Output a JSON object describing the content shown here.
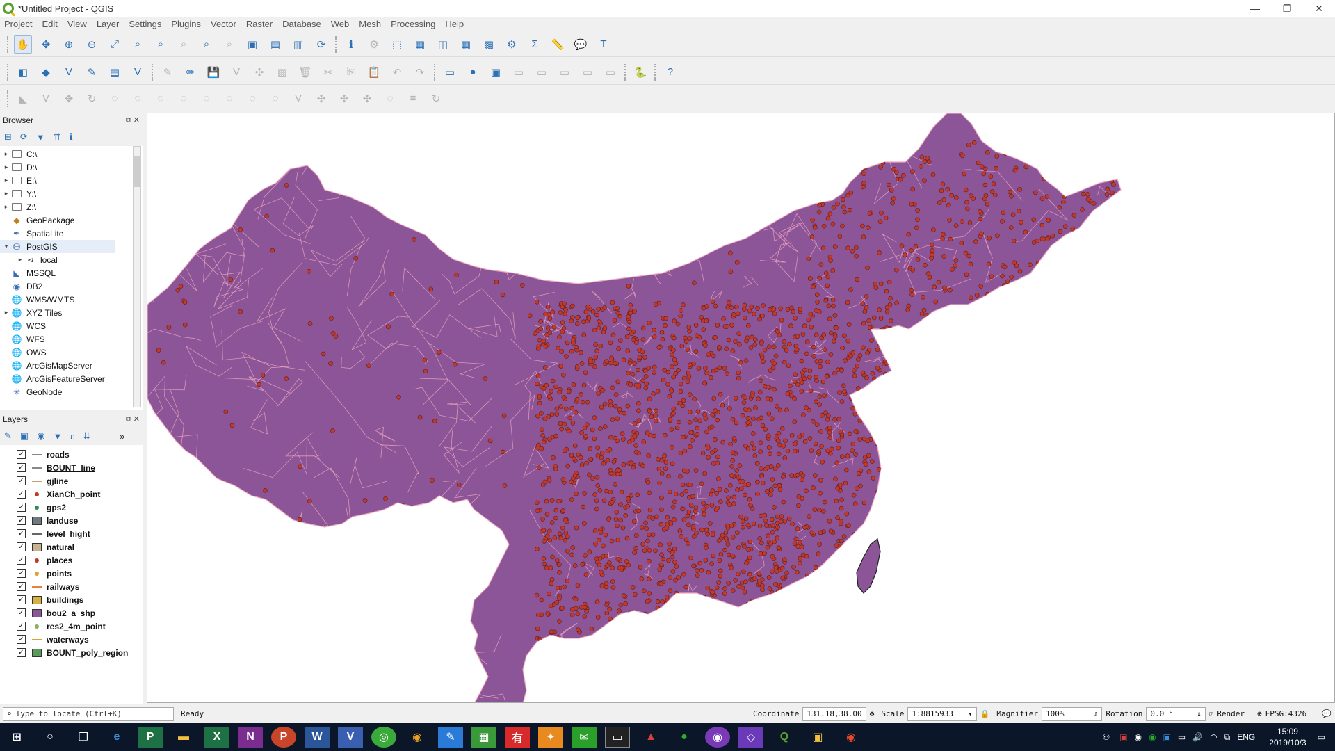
{
  "window": {
    "title": "*Untitled Project - QGIS"
  },
  "menu": [
    "Project",
    "Edit",
    "View",
    "Layer",
    "Settings",
    "Plugins",
    "Vector",
    "Raster",
    "Database",
    "Web",
    "Mesh",
    "Processing",
    "Help"
  ],
  "browser": {
    "title": "Browser",
    "items": [
      {
        "label": "C:\\",
        "icon": "folder-icon",
        "twisty": "▸"
      },
      {
        "label": "D:\\",
        "icon": "folder-icon",
        "twisty": "▸"
      },
      {
        "label": "E:\\",
        "icon": "folder-icon",
        "twisty": "▸"
      },
      {
        "label": "Y:\\",
        "icon": "folder-icon",
        "twisty": "▸"
      },
      {
        "label": "Z:\\",
        "icon": "folder-icon",
        "twisty": "▸"
      },
      {
        "label": "GeoPackage",
        "icon": "geopackage-icon",
        "twisty": ""
      },
      {
        "label": "SpatiaLite",
        "icon": "spatialite-icon",
        "twisty": ""
      },
      {
        "label": "PostGIS",
        "icon": "postgis-icon",
        "twisty": "▾"
      },
      {
        "label": "local",
        "icon": "connection-icon",
        "twisty": "▸",
        "indent": true
      },
      {
        "label": "MSSQL",
        "icon": "mssql-icon",
        "twisty": ""
      },
      {
        "label": "DB2",
        "icon": "db2-icon",
        "twisty": ""
      },
      {
        "label": "WMS/WMTS",
        "icon": "globe-icon",
        "twisty": ""
      },
      {
        "label": "XYZ Tiles",
        "icon": "globe-icon",
        "twisty": "▸"
      },
      {
        "label": "WCS",
        "icon": "globe-icon",
        "twisty": ""
      },
      {
        "label": "WFS",
        "icon": "globe-icon",
        "twisty": ""
      },
      {
        "label": "OWS",
        "icon": "globe-icon",
        "twisty": ""
      },
      {
        "label": "ArcGisMapServer",
        "icon": "globe-icon",
        "twisty": ""
      },
      {
        "label": "ArcGisFeatureServer",
        "icon": "globe-icon",
        "twisty": ""
      },
      {
        "label": "GeoNode",
        "icon": "geonode-icon",
        "twisty": ""
      }
    ]
  },
  "layers": {
    "title": "Layers",
    "items": [
      {
        "label": "roads",
        "symbol": "line",
        "color": "#888888"
      },
      {
        "label": "BOUNT_line",
        "symbol": "line",
        "color": "#888888",
        "underline": true
      },
      {
        "label": "gjline",
        "symbol": "line",
        "color": "#c8a070"
      },
      {
        "label": "XianCh_point",
        "symbol": "point",
        "color": "#c0392b"
      },
      {
        "label": "gps2",
        "symbol": "point",
        "color": "#2e8b57"
      },
      {
        "label": "landuse",
        "symbol": "fill",
        "color": "#6f7a80"
      },
      {
        "label": "level_hight",
        "symbol": "line",
        "color": "#666666"
      },
      {
        "label": "natural",
        "symbol": "fill",
        "color": "#c8b290"
      },
      {
        "label": "places",
        "symbol": "point",
        "color": "#c0392b"
      },
      {
        "label": "points",
        "symbol": "point",
        "color": "#e0a030"
      },
      {
        "label": "railways",
        "symbol": "line",
        "color": "#e88040"
      },
      {
        "label": "buildings",
        "symbol": "fill",
        "color": "#d6b040"
      },
      {
        "label": "bou2_a_shp",
        "symbol": "fill",
        "color": "#8b5597"
      },
      {
        "label": "res2_4m_point",
        "symbol": "point",
        "color": "#8ab060"
      },
      {
        "label": "waterways",
        "symbol": "line",
        "color": "#e0a030"
      },
      {
        "label": "BOUNT_poly_region",
        "symbol": "fill",
        "color": "#5b9a5b"
      }
    ]
  },
  "map": {
    "fill": "#8b5597",
    "border": "#f0a8c0",
    "point": "#c0392b"
  },
  "status": {
    "locate_placeholder": "Type to locate (Ctrl+K)",
    "message": "Ready",
    "coordinate_label": "Coordinate",
    "coordinate": "131.18,38.00",
    "scale_label": "Scale",
    "scale": "1:8815933",
    "magnifier_label": "Magnifier",
    "magnifier": "100%",
    "rotation_label": "Rotation",
    "rotation": "0.0 °",
    "render_label": "Render",
    "crs": "EPSG:4326"
  },
  "taskbar": {
    "time": "15:09",
    "date": "2019/10/3",
    "lang": "ENG"
  }
}
